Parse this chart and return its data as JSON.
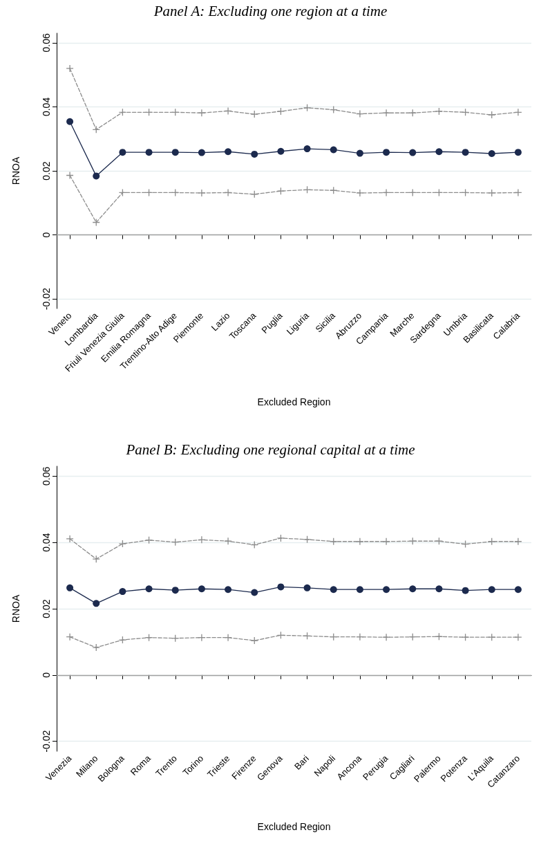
{
  "chart_data": [
    {
      "type": "line",
      "title": "Panel A: Excluding one region at a time",
      "xlabel": "Excluded Region",
      "ylabel": "RNOA",
      "categories": [
        "Veneto",
        "Lombardia",
        "Friuli Venezia Giulia",
        "Emilia Romagna",
        "Trentino-Alto Adige",
        "Piemonte",
        "Lazio",
        "Toscana",
        "Puglia",
        "Liguria",
        "Sicilia",
        "Abruzzo",
        "Campania",
        "Marche",
        "Sardegna",
        "Umbria",
        "Basilicata",
        "Calabria"
      ],
      "series": [
        {
          "color": "#8c8c8c",
          "marker": "cross",
          "line_style": "dashed",
          "values": [
            0.052,
            0.0329,
            0.0383,
            0.0383,
            0.0383,
            0.0381,
            0.0387,
            0.0377,
            0.0386,
            0.0397,
            0.0391,
            0.0378,
            0.0381,
            0.0381,
            0.0386,
            0.0383,
            0.0375,
            0.0383
          ]
        },
        {
          "color": "#1c2a4e",
          "marker": "circle",
          "line_style": "solid",
          "values": [
            0.0354,
            0.0184,
            0.0258,
            0.0258,
            0.0258,
            0.0257,
            0.026,
            0.0252,
            0.0261,
            0.0269,
            0.0266,
            0.0255,
            0.0258,
            0.0257,
            0.026,
            0.0258,
            0.0254,
            0.0258
          ]
        },
        {
          "color": "#8c8c8c",
          "marker": "cross",
          "line_style": "dashed",
          "values": [
            0.0186,
            0.0039,
            0.0132,
            0.0132,
            0.0132,
            0.0131,
            0.0132,
            0.0127,
            0.0137,
            0.0141,
            0.0139,
            0.0131,
            0.0132,
            0.0132,
            0.0132,
            0.0132,
            0.0131,
            0.0132
          ]
        }
      ],
      "ylim": [
        -0.023,
        0.063
      ],
      "yticks": [
        -0.02,
        0,
        0.02,
        0.04,
        0.06
      ],
      "grid": "y",
      "ref_lines": [
        {
          "axis": "y",
          "value": 0,
          "color": "#a0a0a0"
        }
      ]
    },
    {
      "type": "line",
      "title": "Panel B: Excluding one regional capital at a time",
      "xlabel": "Excluded Region",
      "ylabel": "RNOA",
      "categories": [
        "Venezia",
        "Milano",
        "Bologna",
        "Roma",
        "Trento",
        "Torino",
        "Trieste",
        "Firenze",
        "Genova",
        "Bari",
        "Napoli",
        "Ancona",
        "Perugia",
        "Cagliari",
        "Palermo",
        "Potenza",
        "L'Aquila",
        "Catanzaro"
      ],
      "series": [
        {
          "color": "#8c8c8c",
          "marker": "cross",
          "line_style": "dashed",
          "values": [
            0.0411,
            0.035,
            0.0396,
            0.0407,
            0.0401,
            0.0408,
            0.0404,
            0.0393,
            0.0413,
            0.0409,
            0.0403,
            0.0403,
            0.0403,
            0.0404,
            0.0404,
            0.0395,
            0.0403,
            0.0403
          ]
        },
        {
          "color": "#1c2a4e",
          "marker": "circle",
          "line_style": "solid",
          "values": [
            0.0263,
            0.0216,
            0.0252,
            0.026,
            0.0256,
            0.026,
            0.0258,
            0.0249,
            0.0266,
            0.0263,
            0.0258,
            0.0258,
            0.0258,
            0.026,
            0.026,
            0.0255,
            0.0258,
            0.0258
          ]
        },
        {
          "color": "#8c8c8c",
          "marker": "cross",
          "line_style": "dashed",
          "values": [
            0.0115,
            0.0083,
            0.0106,
            0.0113,
            0.0111,
            0.0113,
            0.0113,
            0.0104,
            0.012,
            0.0118,
            0.0115,
            0.0115,
            0.0114,
            0.0115,
            0.0116,
            0.0114,
            0.0114,
            0.0114
          ]
        }
      ],
      "ylim": [
        -0.023,
        0.063
      ],
      "yticks": [
        -0.02,
        0,
        0.02,
        0.04,
        0.06
      ],
      "grid": "y",
      "ref_lines": [
        {
          "axis": "y",
          "value": 0,
          "color": "#a0a0a0"
        }
      ]
    }
  ]
}
